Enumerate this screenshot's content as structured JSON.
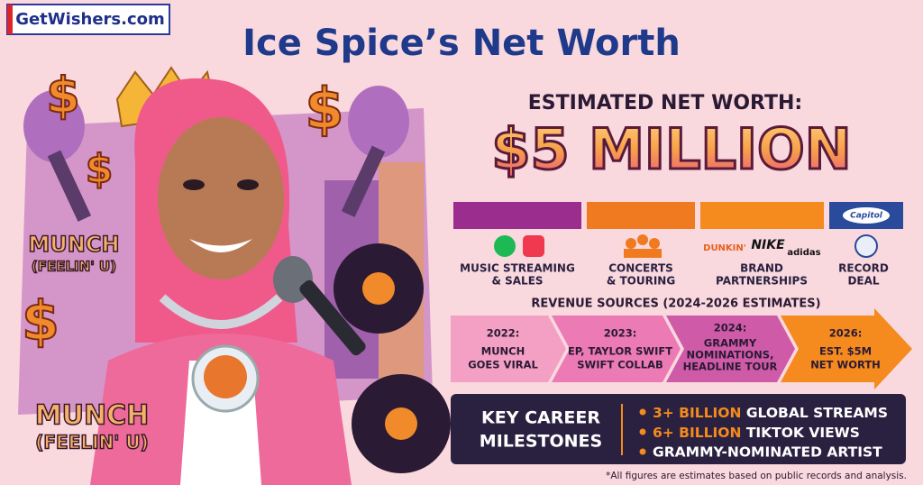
{
  "logo": "GetWishers.com",
  "title": "Ice Spice’s Net Worth",
  "estimate": {
    "label": "ESTIMATED NET WORTH:",
    "value": "$5 MILLION"
  },
  "revenue": {
    "record_label_logo": "Capitol",
    "brands": [
      "DUNKIN'",
      "NIKE",
      "adidas"
    ],
    "sources": [
      {
        "lines": [
          "MUSIC STREAMING",
          "& SALES"
        ]
      },
      {
        "lines": [
          "CONCERTS",
          "& TOURING"
        ]
      },
      {
        "lines": [
          "BRAND",
          "PARTNERSHIPS"
        ]
      },
      {
        "lines": [
          "RECORD",
          "DEAL"
        ]
      }
    ],
    "caption": "REVENUE SOURCES (2024-2026 ESTIMATES)"
  },
  "timeline": [
    {
      "year": "2022:",
      "lines": [
        "MUNCH",
        "GOES VIRAL"
      ]
    },
    {
      "year": "2023:",
      "lines": [
        "EP, TAYLOR SWIFT",
        "SWIFT COLLAB"
      ]
    },
    {
      "year": "2024:",
      "lines": [
        "GRAMMY",
        "NOMINATIONS,",
        "HEADLINE TOUR"
      ]
    },
    {
      "year": "2026:",
      "lines": [
        "EST. $5M",
        "NET WORTH"
      ]
    }
  ],
  "milestones": {
    "title": [
      "KEY CAREER",
      "MILESTONES"
    ],
    "items": [
      {
        "highlight": "3+ BILLION",
        "text": "GLOBAL STREAMS"
      },
      {
        "highlight": "6+ BILLION",
        "text": "TIKTOK VIEWS"
      },
      {
        "text": "GRAMMY-NOMINATED ARTIST"
      }
    ]
  },
  "illustration_text": [
    {
      "lines": [
        "MUNCH",
        "(FEELIN' U)"
      ]
    },
    {
      "lines": [
        "MUNCH",
        "(FEELIN' U)"
      ]
    }
  ],
  "footnote": "*All figures are estimates based on public records and analysis."
}
